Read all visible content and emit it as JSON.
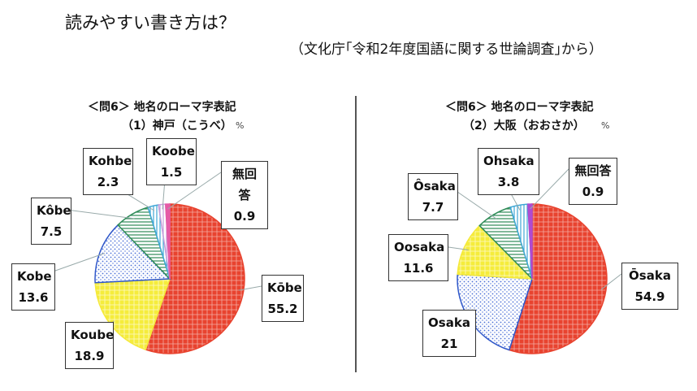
{
  "header": {
    "title": "読みやすい書き方は？",
    "source": "（文化庁｢令和2年度国語に関する世論調査｣から）"
  },
  "chart_data": [
    {
      "type": "pie",
      "title": "＜問6＞ 地名のローマ字表記",
      "subtitle": "（1）神戸（こうべ）",
      "unit": "%",
      "slices": [
        {
          "label": "Kōbe",
          "value": 55.2,
          "color": "#e8432f",
          "pattern": "cross-red"
        },
        {
          "label": "Koube",
          "value": 18.9,
          "color": "#f5e93a",
          "pattern": "yellow-grid"
        },
        {
          "label": "Kobe",
          "value": 13.6,
          "color": "#2f57c9",
          "pattern": "blue-dots"
        },
        {
          "label": "Kôbe",
          "value": 7.5,
          "color": "#2e8b57",
          "pattern": "green-h"
        },
        {
          "label": "Kohbe",
          "value": 2.3,
          "color": "#3fa7d6",
          "pattern": "cyan-v"
        },
        {
          "label": "Koobe",
          "value": 1.5,
          "color": "#c9a0dc",
          "pattern": "lav-v"
        },
        {
          "label": "無回答",
          "value": 0.9,
          "color": "#e65aa6",
          "pattern": "solid"
        }
      ]
    },
    {
      "type": "pie",
      "title": "＜問6＞ 地名のローマ字表記",
      "subtitle": "（2）大阪（おおさか）",
      "unit": "%",
      "slices": [
        {
          "label": "Ōsaka",
          "value": 54.9,
          "color": "#e8432f",
          "pattern": "cross-red"
        },
        {
          "label": "Osaka",
          "value": 21.0,
          "color": "#2f57c9",
          "pattern": "blue-dots"
        },
        {
          "label": "Oosaka",
          "value": 11.6,
          "color": "#f5e93a",
          "pattern": "yellow-grid"
        },
        {
          "label": "Ôsaka",
          "value": 7.7,
          "color": "#2e8b57",
          "pattern": "green-h"
        },
        {
          "label": "Ohsaka",
          "value": 3.8,
          "color": "#3fa7d6",
          "pattern": "cyan-v"
        },
        {
          "label": "無回答",
          "value": 0.9,
          "color": "#b04ad1",
          "pattern": "solid"
        }
      ]
    }
  ]
}
